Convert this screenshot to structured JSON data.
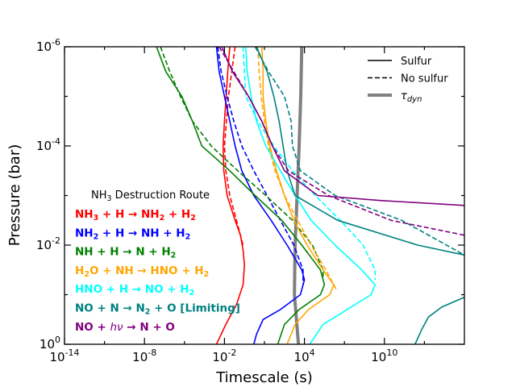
{
  "chart_data": {
    "type": "line",
    "xlabel": "Timescale (s)",
    "ylabel": "Pressure (bar)",
    "x_scale": "log",
    "y_scale": "log",
    "y_inverted": true,
    "xlim_log10": [
      -14,
      16
    ],
    "ylim_log10": [
      -6,
      0
    ],
    "x_ticks": [
      {
        "exp": -14,
        "label": "-14"
      },
      {
        "exp": -8,
        "label": "-8"
      },
      {
        "exp": -2,
        "label": "-2"
      },
      {
        "exp": 4,
        "label": "4"
      },
      {
        "exp": 10,
        "label": "10"
      }
    ],
    "y_ticks": [
      {
        "exp": -6,
        "label": "-6"
      },
      {
        "exp": -4,
        "label": "-4"
      },
      {
        "exp": -2,
        "label": "-2"
      },
      {
        "exp": 0,
        "label": "0"
      }
    ],
    "tick_base": "10",
    "legend": {
      "position": "top-right",
      "entries": [
        {
          "label": "Sulfur",
          "style": "solid",
          "color": "#000000"
        },
        {
          "label": "No sulfur",
          "style": "dashed",
          "color": "#000000"
        },
        {
          "label": "τ",
          "sub": "dyn",
          "style": "thick",
          "color": "#808080"
        }
      ]
    },
    "routes_title": {
      "pre": "NH",
      "sub": "3",
      "post": " Destruction Route"
    },
    "routes": [
      {
        "color": "#ff0000",
        "parts": [
          [
            "NH",
            "n"
          ],
          [
            "3",
            "sub"
          ],
          [
            " + H → NH",
            "n"
          ],
          [
            "2",
            "sub"
          ],
          [
            " + H",
            "n"
          ],
          [
            "2",
            "sub"
          ]
        ]
      },
      {
        "color": "#0000ff",
        "parts": [
          [
            "NH",
            "n"
          ],
          [
            "2",
            "sub"
          ],
          [
            " + H → NH + H",
            "n"
          ],
          [
            "2",
            "sub"
          ]
        ]
      },
      {
        "color": "#008000",
        "parts": [
          [
            "NH + H → N + H",
            "n"
          ],
          [
            "2",
            "sub"
          ]
        ]
      },
      {
        "color": "#ffa500",
        "parts": [
          [
            "H",
            "n"
          ],
          [
            "2",
            "sub"
          ],
          [
            "O + NH → HNO + H",
            "n"
          ],
          [
            "2",
            "sub"
          ]
        ]
      },
      {
        "color": "#00ffff",
        "parts": [
          [
            "HNO + H → NO + H",
            "n"
          ],
          [
            "2",
            "sub"
          ]
        ]
      },
      {
        "color": "#008080",
        "parts": [
          [
            "NO + N → N",
            "n"
          ],
          [
            "2",
            "sub"
          ],
          [
            " + O [Limiting]",
            "n"
          ]
        ]
      },
      {
        "color": "#800080",
        "parts": [
          [
            "NO + ",
            "n"
          ],
          [
            "hν",
            "it"
          ],
          [
            " → N + O",
            "n"
          ]
        ]
      }
    ],
    "series": [
      {
        "name": "NH3 + H -> NH2 + H2 (Sulfur)",
        "color": "#ff0000",
        "style": "solid",
        "points": [
          [
            -1.6,
            -6
          ],
          [
            -1.75,
            -5.5
          ],
          [
            -2,
            -4.5
          ],
          [
            -2.1,
            -4
          ],
          [
            -2.05,
            -3.5
          ],
          [
            -1.8,
            -3
          ],
          [
            -1.2,
            -2.5
          ],
          [
            -0.8,
            -2.2
          ],
          [
            -0.6,
            -1.9
          ],
          [
            -0.5,
            -1.6
          ],
          [
            -0.6,
            -1.2
          ],
          [
            -1.1,
            -0.8
          ],
          [
            -1.9,
            -0.4
          ],
          [
            -2.6,
            0
          ]
        ]
      },
      {
        "name": "NH3 + H -> NH2 + H2 (No sulfur)",
        "color": "#ff0000",
        "style": "dashed",
        "points": [
          [
            -1.2,
            -6
          ],
          [
            -1.45,
            -5.5
          ],
          [
            -1.7,
            -5
          ],
          [
            -1.85,
            -4.5
          ],
          [
            -2,
            -4
          ],
          [
            -1.9,
            -3.5
          ],
          [
            -1.6,
            -3
          ],
          [
            -1.1,
            -2.5
          ],
          [
            -0.6,
            -2
          ]
        ]
      },
      {
        "name": "NH2 + H -> NH + H2 (Sulfur)",
        "color": "#0000ff",
        "style": "solid",
        "points": [
          [
            -2.6,
            -6
          ],
          [
            -2.4,
            -5.5
          ],
          [
            -2,
            -5
          ],
          [
            -1.6,
            -4.5
          ],
          [
            -1.2,
            -4
          ],
          [
            -0.7,
            -3.5
          ],
          [
            0.2,
            -3
          ],
          [
            1.5,
            -2.5
          ],
          [
            2.7,
            -2
          ],
          [
            3.8,
            -1.5
          ],
          [
            4.0,
            -1.3
          ],
          [
            3.7,
            -1
          ],
          [
            2.2,
            -0.7
          ],
          [
            0.9,
            -0.5
          ],
          [
            0.4,
            -0.2
          ],
          [
            0.2,
            0
          ]
        ]
      },
      {
        "name": "NH2 + H -> NH + H2 (No sulfur)",
        "color": "#0000ff",
        "style": "dashed",
        "points": [
          [
            -2.5,
            -6
          ],
          [
            -2.25,
            -5.5
          ],
          [
            -1.8,
            -5
          ],
          [
            -1.3,
            -4.5
          ],
          [
            -0.7,
            -4
          ],
          [
            0.2,
            -3.5
          ],
          [
            1.2,
            -3
          ],
          [
            2.2,
            -2.5
          ],
          [
            3.2,
            -2
          ],
          [
            3.9,
            -1.5
          ],
          [
            3.9,
            -1.2
          ]
        ]
      },
      {
        "name": "NH + H -> N + H2 (Sulfur)",
        "color": "#008000",
        "style": "solid",
        "points": [
          [
            -7.1,
            -6
          ],
          [
            -6.4,
            -5.5
          ],
          [
            -5.2,
            -5
          ],
          [
            -4.4,
            -4.5
          ],
          [
            -3.7,
            -4
          ],
          [
            -1.6,
            -3.5
          ],
          [
            0.3,
            -3
          ],
          [
            2.3,
            -2.5
          ],
          [
            3.8,
            -2
          ],
          [
            5.2,
            -1.5
          ],
          [
            5.5,
            -1.2
          ],
          [
            5.2,
            -1
          ],
          [
            3.6,
            -0.7
          ],
          [
            2.5,
            -0.4
          ],
          [
            2,
            0
          ]
        ]
      },
      {
        "name": "NH + H -> N + H2 (No sulfur)",
        "color": "#008000",
        "style": "dashed",
        "points": [
          [
            -6.8,
            -6
          ],
          [
            -6.1,
            -5.5
          ],
          [
            -5.3,
            -5
          ],
          [
            -4.4,
            -4.5
          ],
          [
            -3,
            -4
          ],
          [
            -1,
            -3.5
          ],
          [
            1.1,
            -3
          ],
          [
            3.1,
            -2.5
          ],
          [
            4.6,
            -2
          ],
          [
            5.4,
            -1.5
          ],
          [
            5.4,
            -1.3
          ]
        ]
      },
      {
        "name": "H2O + NH -> HNO + H2 (Sulfur)",
        "color": "#ffa500",
        "style": "solid",
        "points": [
          [
            0.8,
            -6
          ],
          [
            0.9,
            -5.5
          ],
          [
            0.9,
            -5
          ],
          [
            1.1,
            -4.5
          ],
          [
            1.4,
            -4
          ],
          [
            1.9,
            -3.5
          ],
          [
            2.5,
            -3
          ],
          [
            3.2,
            -2.5
          ],
          [
            4.2,
            -2
          ],
          [
            5.4,
            -1.5
          ],
          [
            6.2,
            -1.2
          ],
          [
            5.9,
            -1
          ],
          [
            4.3,
            -0.7
          ],
          [
            3.3,
            -0.4
          ],
          [
            2.7,
            0
          ]
        ]
      },
      {
        "name": "H2O + NH -> HNO + H2 (No sulfur)",
        "color": "#ffa500",
        "style": "dashed",
        "points": [
          [
            0.5,
            -6
          ],
          [
            0.6,
            -5.5
          ],
          [
            0.75,
            -5
          ],
          [
            1.0,
            -4.5
          ],
          [
            1.3,
            -4
          ],
          [
            1.8,
            -3.5
          ],
          [
            2.5,
            -3
          ],
          [
            3.5,
            -2.5
          ],
          [
            4.5,
            -2
          ],
          [
            5.6,
            -1.5
          ],
          [
            6.4,
            -1.1
          ]
        ]
      },
      {
        "name": "HNO + H -> NO + H2 (Sulfur)",
        "color": "#00ffff",
        "style": "solid",
        "points": [
          [
            -0.4,
            -6
          ],
          [
            -0.3,
            -5.5
          ],
          [
            0,
            -5
          ],
          [
            0.4,
            -4.5
          ],
          [
            1.1,
            -4
          ],
          [
            2.2,
            -3.5
          ],
          [
            3.3,
            -3
          ],
          [
            4.5,
            -2.5
          ],
          [
            6.3,
            -2
          ],
          [
            8.3,
            -1.5
          ],
          [
            9.3,
            -1.2
          ],
          [
            9,
            -1
          ],
          [
            7.2,
            -0.7
          ],
          [
            5.4,
            -0.4
          ],
          [
            4.4,
            0
          ]
        ]
      },
      {
        "name": "HNO + H -> NO + H2 (No sulfur)",
        "color": "#00ffff",
        "style": "dashed",
        "points": [
          [
            -0.6,
            -6
          ],
          [
            -0.5,
            -5.5
          ],
          [
            -0.4,
            -5
          ],
          [
            0.5,
            -4.5
          ],
          [
            1.7,
            -4
          ],
          [
            3.1,
            -3.5
          ],
          [
            4.8,
            -3
          ],
          [
            6.7,
            -2.5
          ],
          [
            8.4,
            -2
          ],
          [
            9.3,
            -1.5
          ],
          [
            9.3,
            -1.3
          ]
        ]
      },
      {
        "name": "NO + N -> N2 + O (Sulfur)",
        "color": "#008080",
        "style": "solid",
        "points": [
          [
            0.4,
            -6
          ],
          [
            1.2,
            -5.5
          ],
          [
            1.7,
            -5
          ],
          [
            2.1,
            -4.5
          ],
          [
            2.4,
            -4
          ],
          [
            2.7,
            -3.5
          ],
          [
            3.3,
            -3
          ],
          [
            6.5,
            -2.5
          ],
          [
            12.5,
            -2
          ],
          [
            16,
            -1.8
          ]
        ]
      },
      {
        "name": "NO + N -> N2 + O (Sulfur, deep)",
        "color": "#008080",
        "style": "solid",
        "points": [
          [
            12.3,
            0
          ],
          [
            12.8,
            -0.3
          ],
          [
            13.3,
            -0.55
          ],
          [
            14.3,
            -0.75
          ],
          [
            16,
            -0.95
          ]
        ]
      },
      {
        "name": "NO + N -> N2 + O (No sulfur)",
        "color": "#008080",
        "style": "dashed",
        "points": [
          [
            0.3,
            -6
          ],
          [
            1.3,
            -5.5
          ],
          [
            2.5,
            -5
          ],
          [
            3.0,
            -4.5
          ],
          [
            3.1,
            -4
          ],
          [
            3.7,
            -3.5
          ],
          [
            6.3,
            -3
          ],
          [
            11.3,
            -2.5
          ],
          [
            16,
            -1.8
          ]
        ]
      },
      {
        "name": "NO + hv -> N + O (Sulfur)",
        "color": "#800080",
        "style": "solid",
        "points": [
          [
            -2.2,
            -6
          ],
          [
            -1.4,
            -5.5
          ],
          [
            -0.2,
            -5
          ],
          [
            0.8,
            -4.5
          ],
          [
            1.6,
            -4
          ],
          [
            2.5,
            -3.5
          ],
          [
            5,
            -3
          ],
          [
            9.7,
            -2.9
          ],
          [
            16,
            -2.8
          ]
        ]
      },
      {
        "name": "NO + hv -> N + O (No sulfur)",
        "color": "#800080",
        "style": "dashed",
        "points": [
          [
            -2.4,
            -6
          ],
          [
            -1.3,
            -5.5
          ],
          [
            -0.2,
            -5
          ],
          [
            0.8,
            -4.5
          ],
          [
            1.6,
            -4
          ],
          [
            2.8,
            -3.5
          ],
          [
            5.8,
            -3
          ],
          [
            10.5,
            -2.5
          ],
          [
            16,
            -2.2
          ]
        ]
      },
      {
        "name": "tau_dyn",
        "color": "#808080",
        "style": "thick",
        "points": [
          [
            3.8,
            -6
          ],
          [
            3.72,
            -5
          ],
          [
            3.6,
            -4
          ],
          [
            3.45,
            -3
          ],
          [
            3.3,
            -2
          ],
          [
            3.25,
            -1
          ],
          [
            3.4,
            -0.5
          ],
          [
            3.55,
            0
          ]
        ]
      }
    ]
  }
}
